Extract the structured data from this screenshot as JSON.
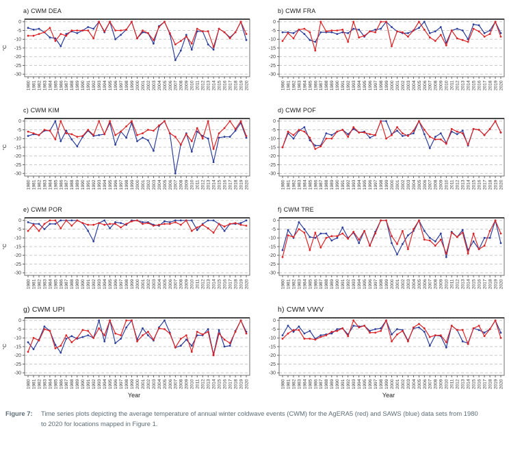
{
  "caption": {
    "label": "Figure 7:",
    "text": "Time series plots depicting the average temperature of annual winter coldwave events (CWM) for the AgERA5 (red) and SAWS (blue) data sets from 1980 to 2020 for locations mapped in Figure 1."
  },
  "colors": {
    "agera5_red": "#dd2326",
    "saws_blue": "#2c3e9c",
    "gridline": "#c9c9c9",
    "frame": "#6e6e6e",
    "frame_top": "#2b2b2b",
    "axis": "#444444",
    "tick_text": "#3c3c3c",
    "caption_text": "#5d6d77"
  },
  "axes": {
    "x_axis_label": "Year",
    "y_axis_label": "°C",
    "ylim": [
      -31.5,
      1.5
    ],
    "y_ticks": [
      "0",
      "-5",
      "-10",
      "-15",
      "-20",
      "-25",
      "-30"
    ],
    "x_ticks": [
      "1980",
      "1981",
      "1982",
      "1983",
      "1984",
      "1985",
      "1986",
      "1987",
      "1988",
      "1989",
      "1990",
      "1991",
      "1992",
      "1993",
      "1994",
      "1995",
      "1996",
      "1997",
      "1998",
      "1999",
      "2000",
      "2001",
      "2002",
      "2003",
      "2004",
      "2005",
      "2006",
      "2007",
      "2008",
      "2009",
      "2010",
      "2011",
      "2012",
      "2013",
      "2014",
      "2015",
      "2016",
      "2017",
      "2018",
      "2019",
      "2020"
    ]
  },
  "chart_data": [
    {
      "id": "a",
      "title": "a) CWM DEA",
      "type": "line",
      "location": "DEA",
      "show_ylabel": true,
      "show_xlabel": false,
      "series": [
        {
          "name": "SAWS",
          "color_key": "saws_blue",
          "values": [
            -3.5,
            -4.5,
            -4,
            -6,
            -9,
            -9.5,
            -14,
            -7,
            -5.5,
            -6.5,
            -5,
            -3,
            -4,
            0,
            -6,
            0,
            -10,
            -7.5,
            -4.5,
            0,
            -9.5,
            -6,
            -6.5,
            -12.5,
            -2.5,
            0,
            -7,
            -22,
            -16.5,
            -7.5,
            -16,
            -5.5,
            -5.5,
            -13,
            -16,
            -4,
            -6,
            -9,
            -6,
            0,
            -10.5
          ]
        },
        {
          "name": "AgERA5",
          "color_key": "agera5_red",
          "values": [
            -8,
            -8,
            -7,
            -6,
            -3.5,
            -11,
            -7,
            -8,
            -5,
            -5,
            -5,
            -5,
            -9.5,
            0,
            -5.5,
            0,
            -5,
            -5,
            -4.5,
            0,
            -9.5,
            -5,
            -6.5,
            -10.5,
            -3,
            0,
            -6.5,
            -13,
            -11,
            -8.5,
            -12.5,
            -4,
            -5.5,
            -5.5,
            -14.5,
            -4,
            -6,
            -9.5,
            -6,
            0,
            -7
          ]
        }
      ]
    },
    {
      "id": "b",
      "title": "b) CWM FRA",
      "type": "line",
      "location": "FRA",
      "show_ylabel": false,
      "show_xlabel": false,
      "series": [
        {
          "name": "SAWS",
          "color_key": "saws_blue",
          "values": [
            -6,
            -6,
            -6.5,
            -4.5,
            -7,
            -10.5,
            -11.5,
            -6,
            -6,
            -6,
            -7,
            -6,
            -6.5,
            -4,
            -4.5,
            -8.5,
            -5.5,
            -4.5,
            -4,
            0,
            -3,
            -5.5,
            -6.5,
            -6.5,
            -5,
            -3.5,
            0,
            -6.5,
            -5.5,
            -3,
            -12,
            -5,
            -4,
            -5,
            -10,
            -1.5,
            -2,
            -6.5,
            -5,
            0,
            -6.5
          ]
        },
        {
          "name": "AgERA5",
          "color_key": "agera5_red",
          "values": [
            -11,
            -6.5,
            -9.5,
            -4.5,
            -4,
            -6,
            -16.5,
            0,
            -5.5,
            -5,
            -5,
            -4.5,
            -11.5,
            0,
            -9,
            -8,
            -5.5,
            -6,
            0,
            0,
            -14,
            -5.5,
            -6,
            -8.5,
            -5,
            0,
            -4.5,
            -9,
            -11,
            -7.5,
            -13.5,
            -5,
            -9.5,
            -10.5,
            -11.5,
            -4,
            -5.5,
            -8.5,
            -7,
            0,
            -8.5
          ]
        }
      ]
    },
    {
      "id": "c",
      "title": "c) CWM KIM",
      "type": "line",
      "location": "KIM",
      "show_ylabel": true,
      "show_xlabel": false,
      "series": [
        {
          "name": "SAWS",
          "color_key": "saws_blue",
          "values": [
            -8.5,
            -7.5,
            -8,
            -5.5,
            -5.5,
            0,
            -11.5,
            -5.5,
            -10.5,
            -14.5,
            -9,
            -5.5,
            -8.5,
            -8,
            -7.5,
            -1,
            -13.5,
            -6,
            -9.5,
            -1,
            -11.5,
            -9.5,
            -11,
            -17,
            -3,
            0,
            -7,
            -30,
            -13.5,
            -7,
            -17.5,
            -6,
            -8.5,
            -10,
            -23.5,
            -9.5,
            -9,
            -9,
            -5.5,
            -1,
            -9.5
          ]
        },
        {
          "name": "AgERA5",
          "color_key": "agera5_red",
          "values": [
            -6,
            -7,
            -8,
            -5,
            -5.5,
            -10.5,
            0,
            -7,
            -7.5,
            -9,
            -8.5,
            -5,
            -8,
            0,
            -7.5,
            0,
            -8,
            -6,
            -3,
            0,
            -8,
            -7,
            -5,
            -5.5,
            -2.5,
            0,
            -7,
            -9,
            -13.5,
            -7.5,
            -11.5,
            -4,
            -10,
            0,
            -16,
            -7,
            -4,
            0,
            -4.5,
            0,
            -8.5
          ]
        }
      ]
    },
    {
      "id": "d",
      "title": "d) CWM POF",
      "type": "line",
      "location": "POF",
      "show_ylabel": false,
      "show_xlabel": false,
      "series": [
        {
          "name": "SAWS",
          "color_key": "saws_blue",
          "values": [
            -15,
            -7,
            -10,
            -5.5,
            -3.5,
            -11,
            -14,
            -14,
            -7,
            -8,
            -6,
            -5,
            -7.5,
            -4.5,
            -6.5,
            -6,
            -9.5,
            -8,
            0,
            0,
            -7.5,
            -5.5,
            -8.5,
            -8,
            -7,
            0,
            -7.5,
            -15.5,
            -9,
            -7,
            -12.5,
            -6,
            -7.5,
            -5.5,
            -14,
            -4.5,
            -5,
            -8,
            -4.5,
            0,
            -6.5
          ]
        },
        {
          "name": "AgERA5",
          "color_key": "agera5_red",
          "values": [
            -15,
            -6,
            -8,
            -5,
            -6,
            -9.5,
            -16,
            -14.5,
            -10,
            -10,
            -6,
            -5,
            -9,
            -3.5,
            -6.5,
            -6.5,
            -7.5,
            -8,
            0,
            -10,
            -8,
            -3.5,
            -7,
            -8.5,
            -5.5,
            0,
            -5,
            -9,
            -10.5,
            -10.5,
            -13,
            -4.5,
            -6,
            -7,
            -13.5,
            -4.5,
            -5,
            -8,
            -4.5,
            0,
            -6.5
          ]
        }
      ]
    },
    {
      "id": "e",
      "title": "e) CWM POR",
      "type": "line",
      "location": "POR",
      "show_ylabel": true,
      "show_xlabel": false,
      "series": [
        {
          "name": "SAWS",
          "color_key": "saws_blue",
          "values": [
            -1,
            -2,
            -2,
            -5,
            -2,
            -2,
            0,
            0,
            0,
            0,
            -1.5,
            -6,
            -12,
            -1.5,
            0,
            -4.5,
            -1,
            -1.5,
            -2.5,
            0,
            0,
            -1,
            -1,
            -2.5,
            -3,
            -0.5,
            -1,
            0,
            0,
            0,
            0,
            -5.5,
            -2,
            0,
            0,
            -2,
            -6,
            -2,
            -2,
            -1.5,
            0
          ]
        },
        {
          "name": "AgERA5",
          "color_key": "agera5_red",
          "values": [
            -6,
            -2.5,
            -6,
            -2,
            0,
            0,
            -4.5,
            0,
            -3,
            0,
            -1.5,
            -2.5,
            -2.5,
            -1.5,
            -2.5,
            -2,
            -2,
            -4,
            -2,
            -0.5,
            0,
            -2,
            -1.5,
            -3,
            -2.5,
            -2,
            -2,
            -1,
            -2.5,
            0,
            -6,
            -4,
            -2.5,
            -4.5,
            -7,
            -2,
            -3.5,
            -2,
            -1.5,
            -2.5,
            -3
          ]
        }
      ]
    },
    {
      "id": "f",
      "title": "f) CWM TRE",
      "type": "line",
      "location": "TRE",
      "show_ylabel": false,
      "show_xlabel": false,
      "series": [
        {
          "name": "SAWS",
          "color_key": "saws_blue",
          "values": [
            -17,
            -5.5,
            -10,
            -1,
            -5,
            -9.5,
            -10,
            -7.5,
            -7.5,
            -11.5,
            -10,
            -4,
            -10,
            -7,
            -13,
            -6,
            -14.5,
            -6.5,
            0,
            0,
            -13,
            -19.5,
            -13.5,
            -8.5,
            -6,
            0,
            -6,
            -10,
            -12,
            -7.5,
            -21,
            -6.5,
            -9.5,
            -5.5,
            -17,
            -12,
            -16.5,
            -10,
            -10,
            0,
            -13
          ]
        },
        {
          "name": "AgERA5",
          "color_key": "agera5_red",
          "values": [
            -21,
            -8.5,
            -9.5,
            -5,
            -7,
            -17,
            -7,
            -15.5,
            -10,
            -9,
            -9,
            -7.5,
            -10.5,
            -6.5,
            -11,
            -6,
            -14.5,
            -7.5,
            0,
            0,
            -9,
            -13.5,
            -6,
            -16.5,
            -5,
            0,
            -11,
            -11.5,
            -14.5,
            -11,
            -19,
            -7,
            -9.5,
            -7,
            -19,
            -7.5,
            -16.5,
            -14.5,
            -6,
            0,
            -7.5
          ]
        }
      ]
    },
    {
      "id": "g",
      "title": "g) CWM UPI",
      "type": "line",
      "location": "UPI",
      "show_ylabel": true,
      "show_xlabel": true,
      "series": [
        {
          "name": "SAWS",
          "color_key": "saws_blue",
          "values": [
            -12.5,
            -16.5,
            -11,
            -3.5,
            -6,
            -14,
            -18.5,
            -10.5,
            -9,
            -10.5,
            -9.5,
            -8.5,
            -10,
            0,
            -12,
            0,
            -13,
            -10.5,
            -4,
            0,
            -11,
            -4.5,
            -8.5,
            -11.5,
            -4,
            0,
            -7,
            -15.5,
            -14.5,
            -11,
            -14.5,
            -8.5,
            -8.5,
            -5,
            -19.5,
            -5.5,
            -15,
            -14.5,
            -6,
            0,
            -6.5
          ]
        },
        {
          "name": "AgERA5",
          "color_key": "agera5_red",
          "values": [
            -18,
            -10,
            -11.5,
            -5,
            -6,
            -16,
            -14.5,
            -8.5,
            -12.5,
            -10,
            -5.5,
            -6,
            -10,
            -4.5,
            -8.5,
            0,
            -7.5,
            -8.5,
            0,
            0,
            -12,
            -8.5,
            -6.5,
            -11,
            -4.5,
            -5,
            -7.5,
            -15.5,
            -10.5,
            -8.5,
            -18,
            -6.5,
            -8,
            -6.5,
            -20,
            -7.5,
            -11,
            -13,
            -6.5,
            0,
            -7.5
          ]
        }
      ]
    },
    {
      "id": "h",
      "title": "h) CWM VWV",
      "type": "line",
      "location": "VWV",
      "show_ylabel": false,
      "show_xlabel": true,
      "series": [
        {
          "name": "SAWS",
          "color_key": "saws_blue",
          "values": [
            -8.5,
            -3,
            -6.5,
            -3.5,
            -7.5,
            -6,
            -10.5,
            -8.5,
            -8,
            -7.5,
            -5,
            -4.5,
            -8,
            -3,
            -3.5,
            -3,
            -6,
            -5,
            -4.5,
            0,
            -8,
            -5,
            -5.5,
            -11.5,
            -4.5,
            -4,
            -6.5,
            -14.5,
            -8.5,
            -9,
            -15.5,
            -3,
            -5.5,
            -12,
            -13,
            -4.5,
            -5.5,
            -7,
            -5,
            0,
            -7
          ]
        },
        {
          "name": "AgERA5",
          "color_key": "agera5_red",
          "values": [
            -10.5,
            -7.5,
            -5.5,
            -5.5,
            -10.5,
            -10.5,
            -11,
            -9.5,
            -8.5,
            -6.5,
            -6,
            -4.5,
            -9,
            0,
            -4,
            -3,
            -7,
            -7,
            -6,
            0,
            -12,
            -8,
            -6,
            -12,
            -4,
            -2,
            -4.5,
            -9.5,
            -8.5,
            -8.5,
            -12.5,
            -3,
            -5.5,
            -5.5,
            -13.5,
            -4.5,
            -3,
            -9,
            -5,
            0,
            -10
          ]
        }
      ]
    }
  ]
}
